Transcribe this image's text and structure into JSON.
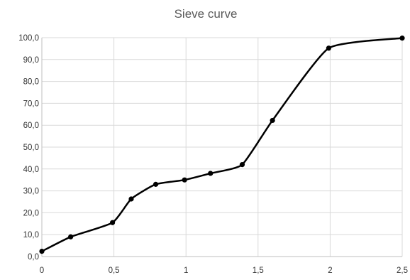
{
  "chart_data": {
    "type": "scatter",
    "title": "Sieve curve",
    "xlabel": "",
    "ylabel": "",
    "xlim": [
      0,
      2.5
    ],
    "ylim": [
      0,
      100
    ],
    "x_ticks": [
      0,
      0.5,
      1,
      1.5,
      2,
      2.5
    ],
    "x_tick_labels": [
      "0",
      "0,5",
      "1",
      "1,5",
      "2",
      "2,5"
    ],
    "y_ticks": [
      0,
      10,
      20,
      30,
      40,
      50,
      60,
      70,
      80,
      90,
      100
    ],
    "y_tick_labels": [
      "0,0",
      "10,0",
      "20,0",
      "30,0",
      "40,0",
      "50,0",
      "60,0",
      "70,0",
      "80,0",
      "90,0",
      "100,0"
    ],
    "grid": "vertical",
    "legend": "none",
    "series": [
      {
        "style": "smoothed line with markers",
        "color": "#000000",
        "points": [
          {
            "x": 0,
            "y": 2.4
          },
          {
            "x": 0.2,
            "y": 9.0
          },
          {
            "x": 0.49,
            "y": 15.5
          },
          {
            "x": 0.62,
            "y": 26.3
          },
          {
            "x": 0.79,
            "y": 33.0
          },
          {
            "x": 0.99,
            "y": 35.0
          },
          {
            "x": 1.17,
            "y": 38.0
          },
          {
            "x": 1.39,
            "y": 42.0
          },
          {
            "x": 1.6,
            "y": 62.2
          },
          {
            "x": 1.99,
            "y": 95.2
          },
          {
            "x": 2.5,
            "y": 99.8
          }
        ]
      }
    ]
  }
}
